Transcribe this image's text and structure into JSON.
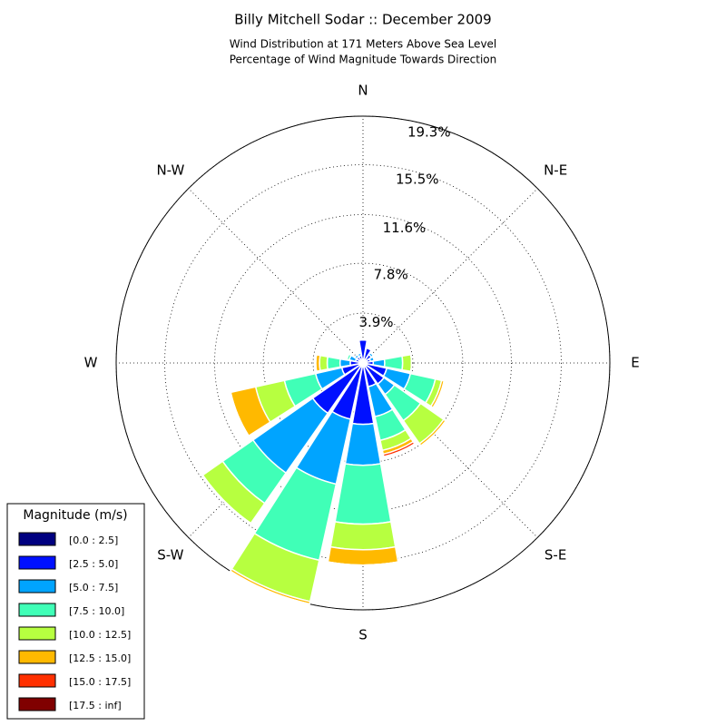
{
  "chart_data": {
    "type": "windrose",
    "title": "Billy Mitchell Sodar :: December 2009",
    "subtitle": [
      "Wind Distribution at 171 Meters Above Sea Level",
      "Percentage of Wind Magnitude Towards Direction"
    ],
    "legend_title": "Magnitude (m/s)",
    "x": [
      0,
      22.5,
      45,
      67.5,
      90,
      112.5,
      135,
      157.5,
      180,
      202.5,
      225,
      247.5,
      270,
      292.5,
      315,
      337.5
    ],
    "xticks": [
      {
        "value": 0,
        "label": "N"
      },
      {
        "value": 45,
        "label": "N-E"
      },
      {
        "value": 90,
        "label": "E"
      },
      {
        "value": 135,
        "label": "S-E"
      },
      {
        "value": 180,
        "label": "S"
      },
      {
        "value": 225,
        "label": "S-W"
      },
      {
        "value": 270,
        "label": "W"
      },
      {
        "value": 315,
        "label": "N-W"
      }
    ],
    "ylim": [
      0,
      19.3
    ],
    "yticks": [
      {
        "value": 3.9,
        "label": "3.9%"
      },
      {
        "value": 7.8,
        "label": "7.8%"
      },
      {
        "value": 11.6,
        "label": "11.6%"
      },
      {
        "value": 15.5,
        "label": "15.5%"
      },
      {
        "value": 19.3,
        "label": "19.3%"
      }
    ],
    "grid": true,
    "legend": "lower left",
    "series": [
      {
        "name": "[0.0 : 2.5]",
        "color": "#000080",
        "values": [
          0.2,
          0.2,
          0.2,
          0.2,
          0.3,
          0.3,
          0.3,
          0.3,
          0.3,
          0.3,
          0.3,
          0.3,
          0.3,
          0.2,
          0.2,
          0.2
        ]
      },
      {
        "name": "[2.5 : 5.0]",
        "color": "#0010ff",
        "values": [
          1.6,
          1.0,
          0.6,
          0.4,
          0.5,
          1.6,
          1.7,
          1.6,
          4.5,
          4.2,
          4.5,
          1.4,
          0.7,
          0.4,
          0.4,
          0.4
        ]
      },
      {
        "name": "[5.0 : 7.5]",
        "color": "#00a4ff",
        "values": [
          0.1,
          0.1,
          0.2,
          0.3,
          0.9,
          1.9,
          1.0,
          2.4,
          3.2,
          5.2,
          5.7,
          2.1,
          0.8,
          0.5,
          0.2,
          0.2
        ]
      },
      {
        "name": "[7.5 : 10.0]",
        "color": "#40ffb7",
        "values": [
          0,
          0,
          0,
          0.1,
          1.4,
          2.0,
          2.5,
          1.9,
          4.6,
          6.1,
          2.9,
          2.5,
          1.0,
          0.2,
          0,
          0
        ]
      },
      {
        "name": "[10.0 : 12.5]",
        "color": "#b7ff40",
        "values": [
          0,
          0,
          0,
          0,
          0.7,
          0.5,
          2.2,
          0.8,
          2.0,
          3.3,
          1.9,
          2.3,
          0.6,
          0,
          0,
          0
        ]
      },
      {
        "name": "[12.5 : 15.0]",
        "color": "#ffb900",
        "values": [
          0,
          0,
          0,
          0,
          0,
          0.2,
          0.2,
          0.3,
          1.2,
          0.2,
          0,
          2.0,
          0.3,
          0,
          0,
          0
        ]
      },
      {
        "name": "[15.0 : 17.5]",
        "color": "#ff3000",
        "values": [
          0,
          0,
          0,
          0,
          0,
          0,
          0,
          0.2,
          0,
          0,
          0,
          0,
          0,
          0,
          0,
          0
        ]
      },
      {
        "name": "[17.5 : inf]",
        "color": "#800000",
        "values": [
          0,
          0,
          0,
          0,
          0,
          0,
          0,
          0,
          0,
          0,
          0,
          0,
          0,
          0,
          0,
          0
        ]
      }
    ]
  }
}
